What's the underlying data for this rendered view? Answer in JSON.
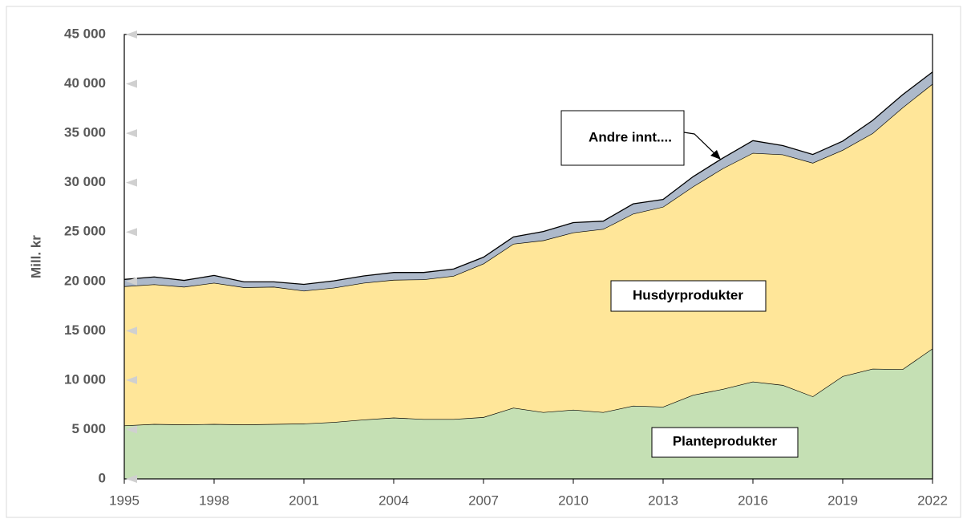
{
  "chart_data": {
    "type": "stacked_area",
    "y_label": "Mill. kr",
    "x": [
      1995,
      1996,
      1997,
      1998,
      1999,
      2000,
      2001,
      2002,
      2003,
      2004,
      2005,
      2006,
      2007,
      2008,
      2009,
      2010,
      2011,
      2012,
      2013,
      2014,
      2015,
      2016,
      2017,
      2018,
      2019,
      2020,
      2021,
      2022
    ],
    "series": [
      {
        "name": "Planteprodukter",
        "color": "#c5e0b4",
        "values": [
          5400,
          5550,
          5500,
          5550,
          5500,
          5550,
          5600,
          5750,
          6000,
          6200,
          6050,
          6050,
          6250,
          7200,
          6750,
          7000,
          6750,
          7400,
          7300,
          8500,
          9100,
          9850,
          9500,
          8350,
          10400,
          11150,
          11100,
          13200
        ]
      },
      {
        "name": "Husdyrprodukter",
        "color": "#ffe699",
        "values": [
          14100,
          14150,
          13950,
          14300,
          13900,
          13900,
          13450,
          13600,
          13850,
          13950,
          14150,
          14500,
          15550,
          16600,
          17400,
          17950,
          18550,
          19450,
          20250,
          21100,
          22350,
          23150,
          23350,
          23650,
          22900,
          23850,
          26500,
          26800
        ]
      },
      {
        "name": "Andre innt....",
        "color": "#adb9ca",
        "values": [
          700,
          750,
          650,
          750,
          550,
          500,
          650,
          700,
          700,
          750,
          700,
          700,
          650,
          700,
          900,
          1000,
          800,
          1000,
          750,
          1000,
          1050,
          1250,
          900,
          850,
          900,
          1300,
          1300,
          1200
        ]
      }
    ],
    "xlim": [
      1995,
      2022
    ],
    "xticks": [
      1995,
      1998,
      2001,
      2004,
      2007,
      2010,
      2013,
      2016,
      2019,
      2022
    ],
    "ylim": [
      0,
      45000
    ],
    "yticks": [
      0,
      {
        "value": 5000,
        "label": "5 000"
      },
      {
        "value": 10000,
        "label": "10 000"
      },
      {
        "value": 15000,
        "label": "15 000"
      },
      {
        "value": 20000,
        "label": "20 000"
      },
      {
        "value": 25000,
        "label": "25 000"
      },
      {
        "value": 30000,
        "label": "30 000"
      },
      {
        "value": 35000,
        "label": "35 000"
      },
      {
        "value": 40000,
        "label": "40 000"
      },
      {
        "value": 45000,
        "label": "45 000"
      }
    ]
  }
}
